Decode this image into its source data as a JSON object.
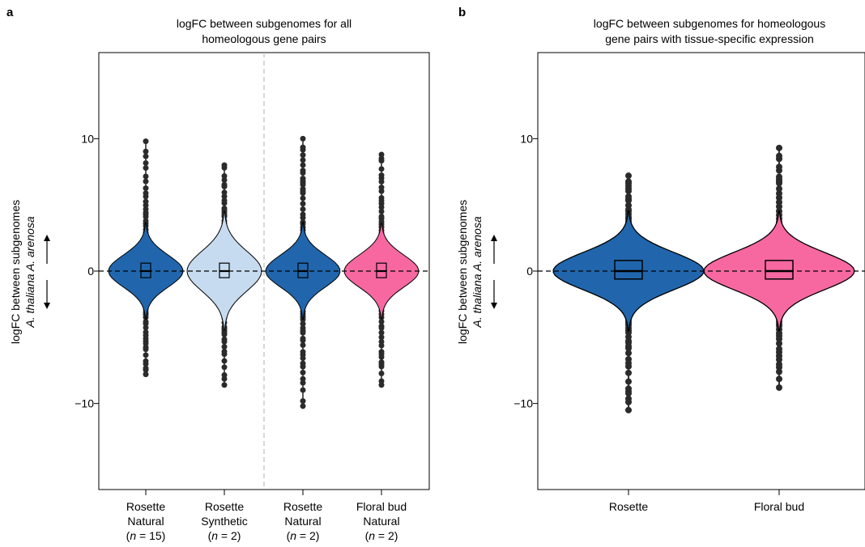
{
  "chart_data": [
    {
      "panel": "a",
      "type": "violin",
      "title_lines": [
        "logFC between subgenomes for all",
        "homeologous gene pairs"
      ],
      "ylabel": "logFC between subgenomes",
      "ylabel_sub": "A. thaliana A. arenosa",
      "ylim": [
        -16.5,
        16.5
      ],
      "yticks": [
        -10,
        0,
        10
      ],
      "reference_line": 0,
      "group_separator_after": 1,
      "categories": [
        {
          "lines": [
            "Rosette",
            "Natural"
          ],
          "n_prefix": "(",
          "n_symbol": "n",
          "n_value": " = 15)",
          "color": "#2166ac",
          "median": 0,
          "q1": -0.5,
          "q3": 0.6,
          "whisker_low": -2.2,
          "whisker_high": 2.3,
          "min": -7.8,
          "max": 9.8,
          "spread": 1.2
        },
        {
          "lines": [
            "Rosette",
            "Synthetic"
          ],
          "n_prefix": "(",
          "n_symbol": "n",
          "n_value": " = 2)",
          "color": "#c6dbef",
          "median": 0,
          "q1": -0.5,
          "q3": 0.6,
          "whisker_low": -2.2,
          "whisker_high": 2.4,
          "min": -8.6,
          "max": 8.0,
          "spread": 1.5
        },
        {
          "lines": [
            "Rosette",
            "Natural"
          ],
          "n_prefix": "(",
          "n_symbol": "n",
          "n_value": " = 2)",
          "color": "#2166ac",
          "median": 0,
          "q1": -0.5,
          "q3": 0.6,
          "whisker_low": -2.2,
          "whisker_high": 2.3,
          "min": -10.2,
          "max": 10.0,
          "spread": 1.2
        },
        {
          "lines": [
            "Floral bud",
            "Natural"
          ],
          "n_prefix": "(",
          "n_symbol": "n",
          "n_value": " = 2)",
          "color": "#f768a1",
          "median": 0,
          "q1": -0.5,
          "q3": 0.6,
          "whisker_low": -2.2,
          "whisker_high": 2.3,
          "min": -8.6,
          "max": 8.8,
          "spread": 1.2
        }
      ]
    },
    {
      "panel": "b",
      "type": "violin",
      "title_lines": [
        "logFC between subgenomes for homeologous",
        "gene pairs with tissue-specific expression"
      ],
      "ylabel": "logFC between subgenomes",
      "ylabel_sub": "A. thaliana A. arenosa",
      "ylim": [
        -16.5,
        16.5
      ],
      "yticks": [
        -10,
        0,
        10
      ],
      "reference_line": 0,
      "categories": [
        {
          "lines": [
            "Rosette"
          ],
          "color": "#2166ac",
          "median": 0,
          "q1": -0.6,
          "q3": 0.8,
          "whisker_low": -2.7,
          "whisker_high": 3.0,
          "min": -10.5,
          "max": 7.2,
          "spread": 1.4
        },
        {
          "lines": [
            "Floral bud"
          ],
          "color": "#f768a1",
          "median": 0,
          "q1": -0.6,
          "q3": 0.8,
          "whisker_low": -2.8,
          "whisker_high": 3.0,
          "min": -8.8,
          "max": 9.3,
          "spread": 1.4
        }
      ]
    }
  ]
}
